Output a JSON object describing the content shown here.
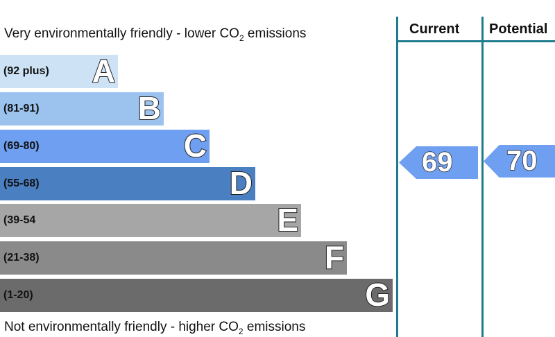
{
  "chart_data": {
    "type": "bar",
    "title_top_prefix": "Very environmentally friendly - lower CO",
    "title_top_sub": "2",
    "title_top_suffix": " emissions",
    "title_bottom_prefix": "Not environmentally friendly - higher CO",
    "title_bottom_sub": "2",
    "title_bottom_suffix": " emissions",
    "bands": [
      {
        "letter": "A",
        "range": "(92 plus)",
        "color": "#cde3f5"
      },
      {
        "letter": "B",
        "range": "(81-91)",
        "color": "#9cc3ee"
      },
      {
        "letter": "C",
        "range": "(69-80)",
        "color": "#6f9ff0"
      },
      {
        "letter": "D",
        "range": "(55-68)",
        "color": "#4a7fc2"
      },
      {
        "letter": "E",
        "range": "(39-54",
        "color": "#a6a6a6"
      },
      {
        "letter": "F",
        "range": "(21-38)",
        "color": "#8a8a8a"
      },
      {
        "letter": "G",
        "range": "(1-20)",
        "color": "#6b6b6b"
      }
    ],
    "columns": [
      {
        "label": "Current",
        "value": 69,
        "band": "C",
        "color": "#6f9ff0"
      },
      {
        "label": "Potential",
        "value": 70,
        "band": "C",
        "color": "#6f9ff0"
      }
    ],
    "accent_color": "#1f7c8c"
  }
}
